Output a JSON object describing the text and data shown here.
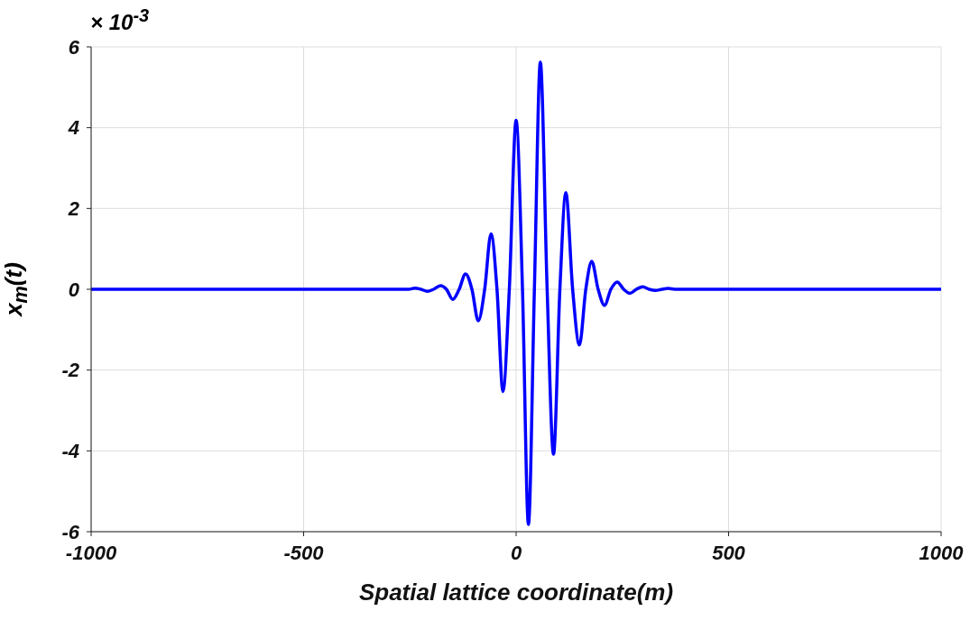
{
  "chart_data": {
    "type": "line",
    "xlabel": "Spatial lattice coordinate(m)",
    "ylabel": "x$_{m}$(t)",
    "annotations": [
      "× 10$^{-3}$"
    ],
    "x": [
      -1000,
      -300,
      -253,
      -238,
      -224,
      -209,
      -194,
      -178,
      -164,
      -149,
      -134,
      -119,
      -104,
      -89,
      -74,
      -59,
      -45,
      -31,
      -16,
      0,
      15,
      29,
      43,
      57,
      73,
      88,
      103,
      117,
      133,
      149,
      164,
      178,
      193,
      208,
      223,
      238,
      253,
      268,
      283,
      298,
      313,
      328,
      343,
      358,
      373,
      1000
    ],
    "series": [
      {
        "color": "#0000ff",
        "values": [
          0,
          0,
          0,
          0.03,
          0,
          -0.05,
          0,
          0.09,
          0,
          -0.25,
          0,
          0.38,
          0,
          -0.78,
          0,
          1.37,
          0,
          -2.53,
          0,
          4.18,
          0,
          -5.82,
          0,
          5.62,
          0,
          -4.08,
          0,
          2.39,
          0,
          -1.38,
          0,
          0.69,
          0,
          -0.4,
          0,
          0.18,
          0,
          -0.1,
          0,
          0.06,
          0,
          -0.03,
          0,
          0.02,
          0,
          0
        ]
      }
    ],
    "xlim": [
      -1000,
      1000
    ],
    "xticks": [
      -1000,
      -500,
      0,
      500,
      1000
    ],
    "ylim": [
      -6,
      6
    ],
    "yticks": [
      -6,
      -4,
      -2,
      0,
      2,
      4,
      6
    ],
    "grid": true,
    "marker": "none",
    "line_style": "solid"
  }
}
